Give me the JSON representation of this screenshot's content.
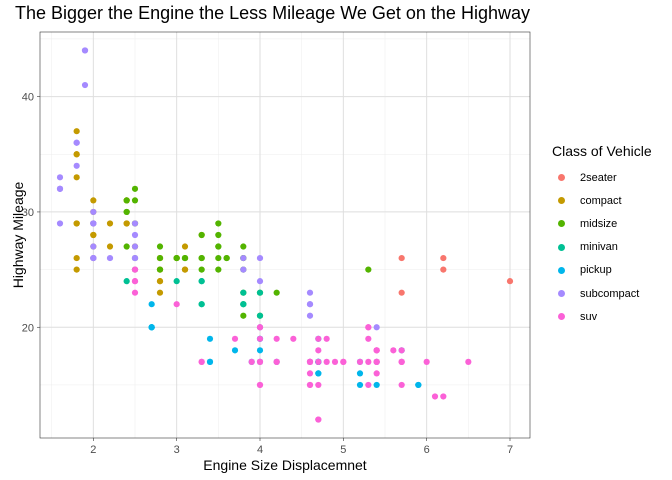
{
  "chart_data": {
    "type": "scatter",
    "title": "The Bigger the Engine the Less Mileage We Get on the Highway",
    "xlabel": "Engine Size Displacemnet",
    "ylabel": "Highway Mileage",
    "xlim": [
      1.36,
      7.24
    ],
    "ylim": [
      10.4,
      45.6
    ],
    "x_ticks": [
      2,
      3,
      4,
      5,
      6,
      7
    ],
    "y_ticks": [
      20,
      30,
      40
    ],
    "grid": true,
    "legend": {
      "title": "Class of Vehicle",
      "position": "right"
    },
    "series": [
      {
        "name": "2seater",
        "color": "#F8766D",
        "points": [
          [
            5.7,
            26
          ],
          [
            5.7,
            23
          ],
          [
            6.2,
            26
          ],
          [
            6.2,
            25
          ],
          [
            7.0,
            24
          ]
        ]
      },
      {
        "name": "compact",
        "color": "#C49A00",
        "points": [
          [
            1.8,
            29
          ],
          [
            1.8,
            29
          ],
          [
            2.0,
            31
          ],
          [
            2.0,
            30
          ],
          [
            2.8,
            26
          ],
          [
            2.8,
            26
          ],
          [
            3.1,
            27
          ],
          [
            1.8,
            26
          ],
          [
            1.8,
            25
          ],
          [
            2.0,
            28
          ],
          [
            2.0,
            27
          ],
          [
            2.8,
            25
          ],
          [
            2.8,
            25
          ],
          [
            3.1,
            25
          ],
          [
            3.1,
            25
          ],
          [
            2.2,
            27
          ],
          [
            2.2,
            29
          ],
          [
            2.4,
            31
          ],
          [
            2.4,
            31
          ],
          [
            3.0,
            26
          ],
          [
            3.0,
            26
          ],
          [
            3.3,
            28
          ],
          [
            1.8,
            33
          ],
          [
            1.8,
            35
          ],
          [
            1.8,
            37
          ],
          [
            1.8,
            35
          ],
          [
            2.0,
            29
          ],
          [
            2.0,
            26
          ],
          [
            2.5,
            29
          ],
          [
            2.5,
            27
          ],
          [
            2.8,
            24
          ],
          [
            2.8,
            24
          ],
          [
            2.0,
            28
          ],
          [
            2.4,
            29
          ],
          [
            2.4,
            29
          ],
          [
            2.5,
            27
          ],
          [
            2.5,
            25
          ],
          [
            2.8,
            23
          ]
        ]
      },
      {
        "name": "midsize",
        "color": "#53B400",
        "points": [
          [
            2.4,
            27
          ],
          [
            3.0,
            26
          ],
          [
            2.4,
            30
          ],
          [
            3.3,
            26
          ],
          [
            3.8,
            27
          ],
          [
            3.8,
            26
          ],
          [
            3.8,
            26
          ],
          [
            4.0,
            23
          ],
          [
            2.8,
            26
          ],
          [
            3.1,
            26
          ],
          [
            4.2,
            23
          ],
          [
            2.4,
            31
          ],
          [
            2.4,
            30
          ],
          [
            3.3,
            28
          ],
          [
            3.5,
            29
          ],
          [
            3.5,
            28
          ],
          [
            3.0,
            26
          ],
          [
            3.5,
            27
          ],
          [
            3.5,
            26
          ],
          [
            3.5,
            25
          ],
          [
            3.5,
            27
          ],
          [
            3.6,
            26
          ],
          [
            3.6,
            26
          ],
          [
            3.8,
            25
          ],
          [
            5.3,
            25
          ],
          [
            2.5,
            31
          ],
          [
            2.5,
            32
          ],
          [
            2.5,
            29
          ],
          [
            2.8,
            27
          ],
          [
            3.1,
            26
          ],
          [
            3.1,
            26
          ],
          [
            3.3,
            26
          ],
          [
            3.3,
            25
          ],
          [
            3.8,
            21
          ],
          [
            3.8,
            22
          ],
          [
            3.8,
            23
          ],
          [
            4.0,
            21
          ],
          [
            2.5,
            26
          ],
          [
            2.8,
            25
          ]
        ]
      },
      {
        "name": "minivan",
        "color": "#00C094",
        "points": [
          [
            2.4,
            24
          ],
          [
            3.0,
            24
          ],
          [
            3.3,
            22
          ],
          [
            3.3,
            24
          ],
          [
            3.3,
            24
          ],
          [
            3.3,
            22
          ],
          [
            3.8,
            22
          ],
          [
            4.0,
            21
          ],
          [
            3.8,
            23
          ],
          [
            3.8,
            22
          ],
          [
            4.0,
            23
          ]
        ]
      },
      {
        "name": "pickup",
        "color": "#00B6EB",
        "points": [
          [
            2.7,
            20
          ],
          [
            2.7,
            20
          ],
          [
            2.7,
            22
          ],
          [
            3.4,
            17
          ],
          [
            3.4,
            19
          ],
          [
            3.7,
            18
          ],
          [
            3.9,
            17
          ],
          [
            4.7,
            17
          ],
          [
            4.7,
            16
          ],
          [
            4.7,
            17
          ],
          [
            5.2,
            15
          ],
          [
            5.2,
            17
          ],
          [
            5.9,
            15
          ],
          [
            4.7,
            19
          ],
          [
            4.7,
            16
          ],
          [
            4.7,
            17
          ],
          [
            4.7,
            17
          ],
          [
            5.2,
            16
          ],
          [
            5.7,
            18
          ],
          [
            5.9,
            15
          ],
          [
            2.7,
            20
          ],
          [
            4.0,
            17
          ],
          [
            4.0,
            19
          ],
          [
            4.0,
            20
          ],
          [
            4.2,
            17
          ],
          [
            4.6,
            17
          ],
          [
            5.4,
            15
          ],
          [
            5.4,
            17
          ],
          [
            2.7,
            20
          ],
          [
            3.4,
            17
          ],
          [
            4.0,
            18
          ],
          [
            4.0,
            19
          ],
          [
            4.7,
            17
          ]
        ]
      },
      {
        "name": "subcompact",
        "color": "#A58AFF",
        "points": [
          [
            3.8,
            26
          ],
          [
            3.8,
            25
          ],
          [
            4.0,
            26
          ],
          [
            4.0,
            24
          ],
          [
            4.6,
            21
          ],
          [
            4.6,
            22
          ],
          [
            4.6,
            23
          ],
          [
            4.6,
            22
          ],
          [
            5.4,
            20
          ],
          [
            1.6,
            33
          ],
          [
            1.6,
            32
          ],
          [
            1.6,
            32
          ],
          [
            1.6,
            29
          ],
          [
            1.6,
            32
          ],
          [
            1.8,
            34
          ],
          [
            1.8,
            36
          ],
          [
            1.8,
            36
          ],
          [
            2.0,
            29
          ],
          [
            2.0,
            26
          ],
          [
            2.0,
            27
          ],
          [
            2.0,
            30
          ],
          [
            2.2,
            26
          ],
          [
            2.5,
            26
          ],
          [
            2.5,
            26
          ],
          [
            2.5,
            25
          ],
          [
            2.5,
            27
          ],
          [
            2.0,
            26
          ],
          [
            2.0,
            29
          ],
          [
            2.5,
            28
          ],
          [
            2.5,
            29
          ],
          [
            1.9,
            44
          ],
          [
            1.9,
            44
          ],
          [
            1.9,
            41
          ],
          [
            2.0,
            29
          ],
          [
            2.0,
            26
          ]
        ]
      },
      {
        "name": "suv",
        "color": "#FB61D7",
        "points": [
          [
            5.3,
            20
          ],
          [
            5.3,
            15
          ],
          [
            5.3,
            20
          ],
          [
            5.7,
            17
          ],
          [
            6.0,
            17
          ],
          [
            5.7,
            15
          ],
          [
            5.7,
            18
          ],
          [
            6.2,
            14
          ],
          [
            6.5,
            17
          ],
          [
            3.7,
            19
          ],
          [
            4.7,
            18
          ],
          [
            4.7,
            19
          ],
          [
            4.7,
            15
          ],
          [
            5.7,
            17
          ],
          [
            6.1,
            14
          ],
          [
            4.0,
            17
          ],
          [
            4.2,
            19
          ],
          [
            4.4,
            19
          ],
          [
            4.6,
            17
          ],
          [
            5.4,
            17
          ],
          [
            5.4,
            18
          ],
          [
            4.6,
            15
          ],
          [
            5.4,
            16
          ],
          [
            5.4,
            17
          ],
          [
            4.0,
            15
          ],
          [
            4.0,
            19
          ],
          [
            4.6,
            17
          ],
          [
            5.0,
            17
          ],
          [
            4.2,
            17
          ],
          [
            4.2,
            17
          ],
          [
            4.6,
            16
          ],
          [
            4.6,
            17
          ],
          [
            4.6,
            15
          ],
          [
            5.4,
            18
          ],
          [
            5.4,
            17
          ],
          [
            2.5,
            23
          ],
          [
            3.0,
            22
          ],
          [
            3.3,
            17
          ],
          [
            4.0,
            17
          ],
          [
            4.7,
            12
          ],
          [
            4.7,
            12
          ],
          [
            5.2,
            17
          ],
          [
            5.7,
            17
          ],
          [
            3.3,
            17
          ],
          [
            3.9,
            17
          ],
          [
            4.7,
            17
          ],
          [
            4.9,
            17
          ],
          [
            5.3,
            17
          ],
          [
            5.3,
            19
          ],
          [
            5.4,
            18
          ],
          [
            5.6,
            18
          ],
          [
            4.0,
            20
          ],
          [
            4.0,
            20
          ],
          [
            4.6,
            17
          ],
          [
            5.0,
            17
          ],
          [
            2.5,
            24
          ],
          [
            2.5,
            24
          ],
          [
            2.5,
            25
          ],
          [
            4.0,
            15
          ],
          [
            4.8,
            17
          ],
          [
            4.8,
            19
          ]
        ]
      }
    ]
  }
}
